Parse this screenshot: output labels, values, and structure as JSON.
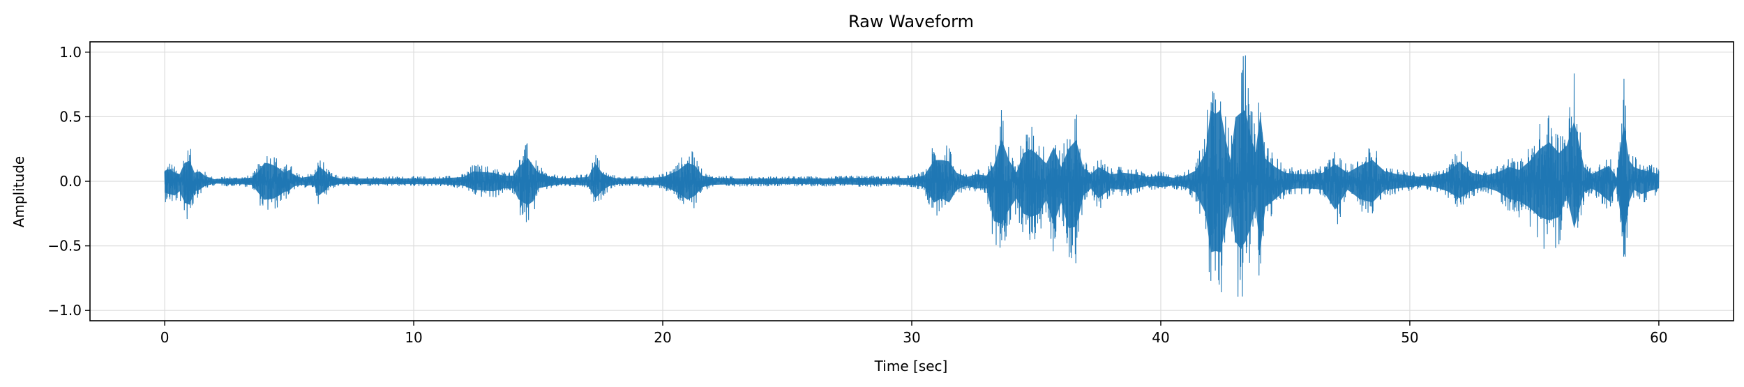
{
  "chart_data": {
    "type": "line",
    "title": "Raw Waveform",
    "xlabel": "Time [sec]",
    "ylabel": "Amplitude",
    "xlim": [
      -3,
      63
    ],
    "ylim": [
      -1.08,
      1.08
    ],
    "xticks": [
      0,
      10,
      20,
      30,
      40,
      50,
      60
    ],
    "yticks": [
      -1.0,
      -0.5,
      0.0,
      0.5,
      1.0
    ],
    "xtick_labels": [
      "0",
      "10",
      "20",
      "30",
      "40",
      "50",
      "60"
    ],
    "ytick_labels": [
      "−1.0",
      "−0.5",
      "0.0",
      "0.5",
      "1.0"
    ],
    "grid": true,
    "line_color": "#1f77b4",
    "series": [
      {
        "x": [
          0,
          0.2,
          0.4,
          0.6,
          0.8,
          1.0,
          1.2,
          1.4,
          1.6,
          1.8,
          2.0,
          2.5,
          3.0,
          3.5,
          3.8,
          4.0,
          4.2,
          4.4,
          4.6,
          4.8,
          5.0,
          5.2,
          5.5,
          6.0,
          6.2,
          6.4,
          6.6,
          7.0,
          8,
          9,
          10,
          11,
          12,
          12.4,
          12.8,
          13.2,
          13.6,
          14.0,
          14.2,
          14.4,
          14.6,
          14.8,
          15.0,
          15.5,
          16,
          17,
          17.3,
          17.6,
          17.9,
          18.2,
          19,
          20,
          20.6,
          21.0,
          21.3,
          21.6,
          22.0,
          23,
          24,
          25,
          26,
          27,
          28,
          29,
          30,
          30.5,
          30.9,
          31.2,
          31.5,
          31.8,
          32.2,
          32.6,
          33.0,
          33.3,
          33.6,
          33.9,
          34.2,
          34.5,
          34.8,
          35.1,
          35.4,
          35.7,
          36.0,
          36.3,
          36.6,
          36.9,
          37.2,
          37.5,
          38.0,
          38.5,
          39.0,
          39.5,
          40.0,
          40.5,
          41.0,
          41.4,
          41.8,
          42.0,
          42.2,
          42.4,
          42.6,
          42.8,
          43.0,
          43.2,
          43.4,
          43.6,
          43.8,
          44.0,
          44.2,
          44.6,
          45.0,
          45.5,
          46.0,
          46.5,
          47.0,
          47.5,
          48.0,
          48.5,
          49.0,
          49.5,
          50.0,
          50.5,
          51.0,
          51.5,
          52.0,
          52.5,
          53.0,
          53.5,
          54.0,
          54.4,
          54.8,
          55.2,
          55.6,
          56.0,
          56.3,
          56.6,
          57.0,
          57.3,
          57.6,
          58.0,
          58.3,
          58.6,
          58.8,
          59.0,
          59.3,
          59.6,
          60.0
        ],
        "y_max": [
          0.15,
          0.17,
          0.12,
          0.1,
          0.26,
          0.29,
          0.12,
          0.14,
          0.08,
          0.05,
          0.03,
          0.04,
          0.04,
          0.05,
          0.15,
          0.26,
          0.25,
          0.22,
          0.18,
          0.12,
          0.16,
          0.08,
          0.05,
          0.08,
          0.2,
          0.16,
          0.08,
          0.04,
          0.04,
          0.04,
          0.04,
          0.04,
          0.06,
          0.14,
          0.13,
          0.12,
          0.08,
          0.08,
          0.2,
          0.26,
          0.32,
          0.22,
          0.12,
          0.06,
          0.04,
          0.06,
          0.25,
          0.1,
          0.06,
          0.04,
          0.04,
          0.06,
          0.15,
          0.26,
          0.22,
          0.08,
          0.05,
          0.04,
          0.04,
          0.04,
          0.04,
          0.04,
          0.05,
          0.04,
          0.05,
          0.08,
          0.3,
          0.3,
          0.28,
          0.12,
          0.06,
          0.1,
          0.08,
          0.22,
          0.6,
          0.3,
          0.12,
          0.4,
          0.45,
          0.36,
          0.25,
          0.48,
          0.2,
          0.46,
          0.58,
          0.18,
          0.1,
          0.2,
          0.1,
          0.12,
          0.1,
          0.06,
          0.08,
          0.05,
          0.08,
          0.15,
          0.4,
          1.0,
          0.95,
          1.0,
          0.6,
          0.3,
          0.9,
          0.96,
          1.0,
          0.65,
          0.4,
          0.95,
          0.32,
          0.2,
          0.12,
          0.1,
          0.1,
          0.12,
          0.24,
          0.12,
          0.22,
          0.3,
          0.14,
          0.1,
          0.08,
          0.06,
          0.08,
          0.12,
          0.28,
          0.12,
          0.08,
          0.12,
          0.2,
          0.16,
          0.28,
          0.45,
          0.55,
          0.4,
          0.5,
          0.85,
          0.2,
          0.1,
          0.15,
          0.22,
          0.05,
          0.82,
          0.3,
          0.2,
          0.16,
          0.14,
          0.1
        ],
        "y_min": [
          -0.16,
          -0.18,
          -0.2,
          -0.14,
          -0.3,
          -0.33,
          -0.14,
          -0.12,
          -0.07,
          -0.05,
          -0.03,
          -0.04,
          -0.04,
          -0.05,
          -0.18,
          -0.26,
          -0.25,
          -0.24,
          -0.2,
          -0.15,
          -0.13,
          -0.07,
          -0.05,
          -0.06,
          -0.2,
          -0.14,
          -0.07,
          -0.04,
          -0.04,
          -0.04,
          -0.04,
          -0.04,
          -0.06,
          -0.12,
          -0.13,
          -0.14,
          -0.1,
          -0.1,
          -0.25,
          -0.3,
          -0.33,
          -0.28,
          -0.1,
          -0.06,
          -0.04,
          -0.06,
          -0.24,
          -0.12,
          -0.06,
          -0.04,
          -0.04,
          -0.06,
          -0.16,
          -0.26,
          -0.2,
          -0.08,
          -0.05,
          -0.04,
          -0.04,
          -0.04,
          -0.04,
          -0.04,
          -0.05,
          -0.04,
          -0.05,
          -0.08,
          -0.3,
          -0.24,
          -0.3,
          -0.12,
          -0.06,
          -0.1,
          -0.1,
          -0.56,
          -0.6,
          -0.4,
          -0.24,
          -0.46,
          -0.5,
          -0.46,
          -0.26,
          -0.6,
          -0.3,
          -0.66,
          -0.64,
          -0.2,
          -0.1,
          -0.24,
          -0.1,
          -0.12,
          -0.1,
          -0.06,
          -0.08,
          -0.06,
          -0.08,
          -0.16,
          -0.45,
          -1.0,
          -0.98,
          -1.0,
          -0.65,
          -0.3,
          -0.85,
          -0.95,
          -0.85,
          -0.65,
          -0.36,
          -0.96,
          -0.36,
          -0.25,
          -0.12,
          -0.1,
          -0.1,
          -0.12,
          -0.4,
          -0.12,
          -0.25,
          -0.3,
          -0.12,
          -0.1,
          -0.08,
          -0.06,
          -0.08,
          -0.14,
          -0.24,
          -0.12,
          -0.08,
          -0.14,
          -0.25,
          -0.28,
          -0.37,
          -0.5,
          -0.55,
          -0.5,
          -0.2,
          -0.66,
          -0.15,
          -0.1,
          -0.16,
          -0.28,
          -0.06,
          -0.82,
          -0.3,
          -0.12,
          -0.18,
          -0.14,
          -0.1
        ]
      }
    ]
  }
}
